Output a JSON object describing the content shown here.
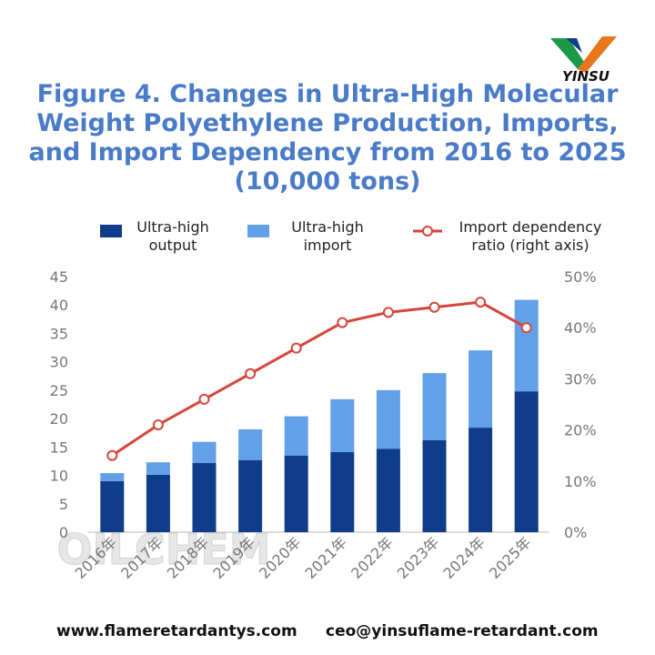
{
  "logo": "YINSU",
  "chart_data": {
    "type": "bar",
    "title": "Figure 4. Changes in Ultra-High Molecular Weight Polyethylene Production, Imports, and Import Dependency from 2016 to 2025 (10,000 tons)",
    "watermark": "OILCHEM",
    "categories": [
      "2016年",
      "2017年",
      "2018年",
      "2019年",
      "2020年",
      "2021年",
      "2022年",
      "2023年",
      "2024年",
      "2025年"
    ],
    "series": [
      {
        "name": "Ultra-high output",
        "color": "#0f3d8c",
        "values": [
          9.0,
          10.1,
          12.2,
          12.7,
          13.5,
          14.1,
          14.7,
          16.2,
          18.4,
          24.8
        ]
      },
      {
        "name": "Ultra-high import",
        "color": "#62a0e8",
        "values": [
          1.4,
          2.2,
          3.7,
          5.4,
          6.9,
          9.3,
          10.3,
          11.8,
          13.6,
          16.1
        ]
      },
      {
        "name": "Import dependency ratio (right axis)",
        "color": "#d6453b",
        "type": "line",
        "axis": "y2",
        "values": [
          15,
          21,
          26,
          31,
          36,
          41,
          43,
          44,
          45,
          40
        ]
      }
    ],
    "stacked": true,
    "ylim": [
      0,
      45
    ],
    "yticks": [
      0,
      5,
      10,
      15,
      20,
      25,
      30,
      35,
      40,
      45
    ],
    "y2lim": [
      0,
      50
    ],
    "y2ticks": [
      {
        "value": 0,
        "label": "0%"
      },
      {
        "value": 10,
        "label": "10%"
      },
      {
        "value": 20,
        "label": "20%"
      },
      {
        "value": 30,
        "label": "30%"
      },
      {
        "value": 40,
        "label": "40%"
      },
      {
        "value": 50,
        "label": "50%"
      }
    ],
    "grid": false
  },
  "footer": {
    "website": "www.flameretardantys.com",
    "email": "ceo@yinsuflame-retardant.com"
  }
}
